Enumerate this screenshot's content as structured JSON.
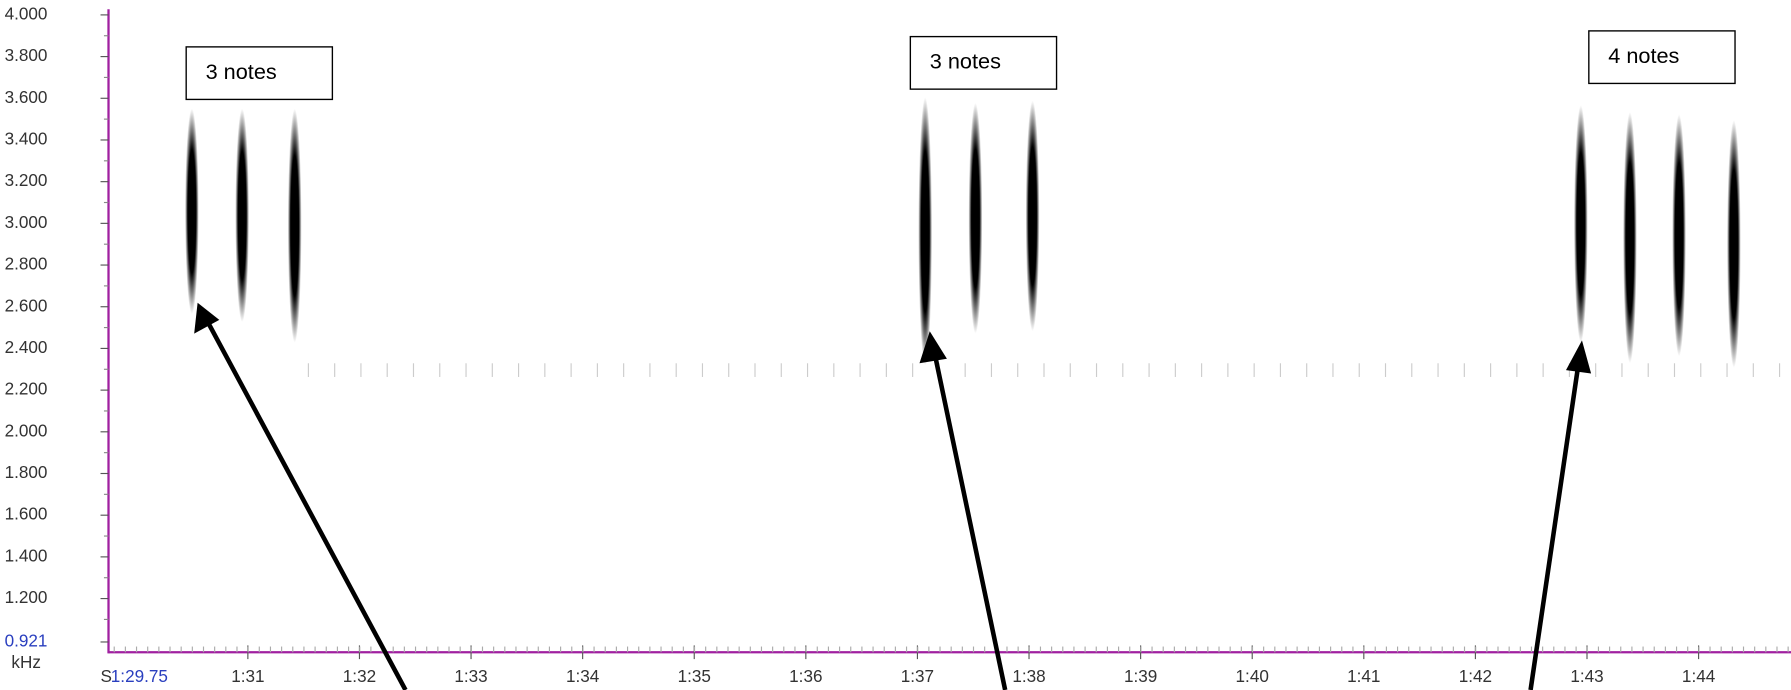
{
  "y_axis": {
    "unit": "kHz",
    "labels": [
      "4.000",
      "3.800",
      "3.600",
      "3.400",
      "3.200",
      "3.000",
      "2.800",
      "2.600",
      "2.400",
      "2.200",
      "2.000",
      "1.800",
      "1.600",
      "1.400",
      "1.200"
    ],
    "bottom_label": "0.921"
  },
  "x_axis": {
    "prefix": "S",
    "start_label": "1:29.75",
    "labels": [
      "1:31",
      "1:32",
      "1:33",
      "1:34",
      "1:35",
      "1:36",
      "1:37",
      "1:38",
      "1:39",
      "1:40",
      "1:41",
      "1:42",
      "1:43",
      "1:44"
    ]
  },
  "annotations": [
    {
      "label": "3 notes"
    },
    {
      "label": "3 notes"
    },
    {
      "label": "4 notes"
    }
  ]
}
